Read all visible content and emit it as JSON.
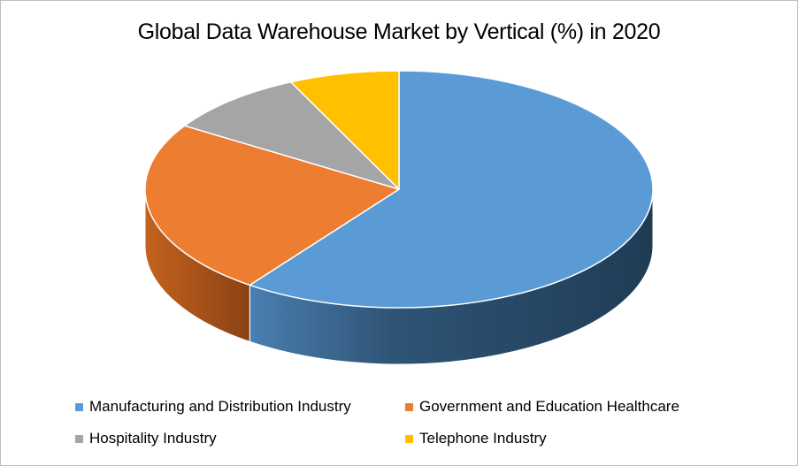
{
  "chart_data": {
    "type": "pie",
    "title": "Global Data Warehouse Market by Vertical (%) in 2020",
    "categories": [
      "Manufacturing and Distribution Industry",
      "Government and Education Healthcare",
      "Hospitality Industry",
      "Telephone Industry"
    ],
    "values": [
      60,
      24,
      9,
      7
    ],
    "colors": [
      "#5b9bd5",
      "#ed7d31",
      "#a5a5a5",
      "#ffc000"
    ],
    "legend_placement": "bottom"
  }
}
